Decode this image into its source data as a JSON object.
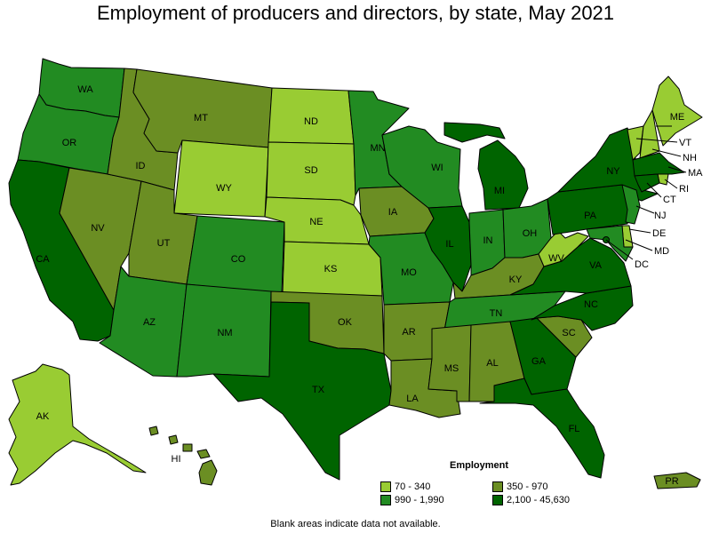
{
  "title": "Employment of producers and directors, by state, May 2021",
  "colors": {
    "c1": "#99cc33",
    "c2": "#6b8e23",
    "c3": "#228b22",
    "c4": "#006400",
    "none": "#ffffff"
  },
  "legend": {
    "title": "Employment",
    "items": [
      {
        "label": "70 - 340",
        "color": "#99cc33"
      },
      {
        "label": "350 - 970",
        "color": "#6b8e23"
      },
      {
        "label": "990 - 1,990",
        "color": "#228b22"
      },
      {
        "label": "2,100 - 45,630",
        "color": "#006400"
      }
    ]
  },
  "states": {
    "WA": {
      "label": "WA",
      "class": "c3"
    },
    "OR": {
      "label": "OR",
      "class": "c3"
    },
    "CA": {
      "label": "CA",
      "class": "c4"
    },
    "NV": {
      "label": "NV",
      "class": "c2"
    },
    "ID": {
      "label": "ID",
      "class": "c2"
    },
    "MT": {
      "label": "MT",
      "class": "c2"
    },
    "WY": {
      "label": "WY",
      "class": "c1"
    },
    "UT": {
      "label": "UT",
      "class": "c2"
    },
    "AZ": {
      "label": "AZ",
      "class": "c3"
    },
    "CO": {
      "label": "CO",
      "class": "c3"
    },
    "NM": {
      "label": "NM",
      "class": "c3"
    },
    "ND": {
      "label": "ND",
      "class": "c1"
    },
    "SD": {
      "label": "SD",
      "class": "c1"
    },
    "NE": {
      "label": "NE",
      "class": "c1"
    },
    "KS": {
      "label": "KS",
      "class": "c1"
    },
    "OK": {
      "label": "OK",
      "class": "c2"
    },
    "TX": {
      "label": "TX",
      "class": "c4"
    },
    "MN": {
      "label": "MN",
      "class": "c3"
    },
    "IA": {
      "label": "IA",
      "class": "c2"
    },
    "MO": {
      "label": "MO",
      "class": "c3"
    },
    "AR": {
      "label": "AR",
      "class": "c2"
    },
    "LA": {
      "label": "LA",
      "class": "c2"
    },
    "WI": {
      "label": "WI",
      "class": "c3"
    },
    "IL": {
      "label": "IL",
      "class": "c4"
    },
    "MI": {
      "label": "MI",
      "class": "c4"
    },
    "IN": {
      "label": "IN",
      "class": "c3"
    },
    "OH": {
      "label": "OH",
      "class": "c3"
    },
    "KY": {
      "label": "KY",
      "class": "c2"
    },
    "TN": {
      "label": "TN",
      "class": "c3"
    },
    "MS": {
      "label": "MS",
      "class": "c2"
    },
    "AL": {
      "label": "AL",
      "class": "c2"
    },
    "GA": {
      "label": "GA",
      "class": "c4"
    },
    "FL": {
      "label": "FL",
      "class": "c4"
    },
    "SC": {
      "label": "SC",
      "class": "c2"
    },
    "NC": {
      "label": "NC",
      "class": "c4"
    },
    "VA": {
      "label": "VA",
      "class": "c4"
    },
    "WV": {
      "label": "WV",
      "class": "c1"
    },
    "PA": {
      "label": "PA",
      "class": "c4"
    },
    "NY": {
      "label": "NY",
      "class": "c4"
    },
    "VT": {
      "label": "VT",
      "class": "c1"
    },
    "NH": {
      "label": "NH",
      "class": "c1"
    },
    "ME": {
      "label": "ME",
      "class": "c1"
    },
    "MA": {
      "label": "MA",
      "class": "c4"
    },
    "RI": {
      "label": "RI",
      "class": "c1"
    },
    "CT": {
      "label": "CT",
      "class": "c4"
    },
    "NJ": {
      "label": "NJ",
      "class": "c3"
    },
    "DE": {
      "label": "DE",
      "class": "c1"
    },
    "MD": {
      "label": "MD",
      "class": "c3"
    },
    "DC": {
      "label": "DC",
      "class": "c4"
    },
    "AK": {
      "label": "AK",
      "class": "c1"
    },
    "HI": {
      "label": "HI",
      "class": "c2"
    },
    "PR": {
      "label": "PR",
      "class": "c2"
    }
  },
  "footnote": "Blank areas indicate data not available."
}
